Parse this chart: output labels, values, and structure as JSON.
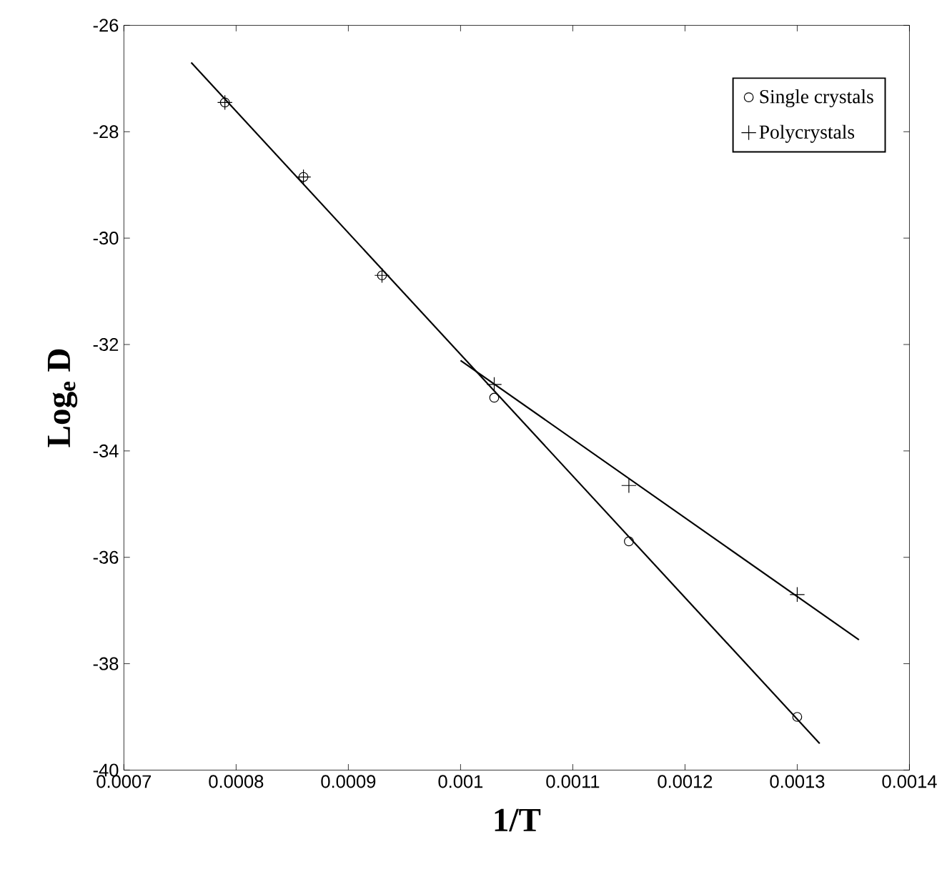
{
  "chart_data": {
    "type": "scatter",
    "xlabel": "1/T",
    "ylabel": "Log$_{e}$ D",
    "xlim": [
      0.0007,
      0.0014
    ],
    "ylim": [
      -40,
      -26
    ],
    "xticks": [
      0.0007,
      0.0008,
      0.0009,
      0.001,
      0.0011,
      0.0012,
      0.0013,
      0.0014
    ],
    "yticks": [
      -40,
      -38,
      -36,
      -34,
      -32,
      -30,
      -28,
      -26
    ],
    "legend": "top right",
    "series": [
      {
        "name": "Single crystals",
        "color": "#000000",
        "marker": "circle",
        "x": [
          0.00079,
          0.00086,
          0.00093,
          0.00103,
          0.00115,
          0.0013
        ],
        "values": [
          -27.45,
          -28.85,
          -30.7,
          -33.0,
          -35.7,
          -39.0
        ]
      },
      {
        "name": "Polycrystals",
        "color": "#000000",
        "marker": "cross",
        "x": [
          0.00079,
          0.00086,
          0.00093,
          0.00103,
          0.00115,
          0.0013
        ],
        "values": [
          -27.45,
          -28.85,
          -30.7,
          -32.75,
          -34.65,
          -36.7
        ]
      },
      {
        "type": "line",
        "color": "#000000",
        "marker": "none",
        "x": [
          0.00076,
          0.00132
        ],
        "values": [
          -26.7,
          -39.5
        ]
      },
      {
        "type": "line",
        "color": "#000000",
        "marker": "none",
        "x": [
          0.001,
          0.001355
        ],
        "values": [
          -32.3,
          -37.55
        ]
      }
    ]
  }
}
